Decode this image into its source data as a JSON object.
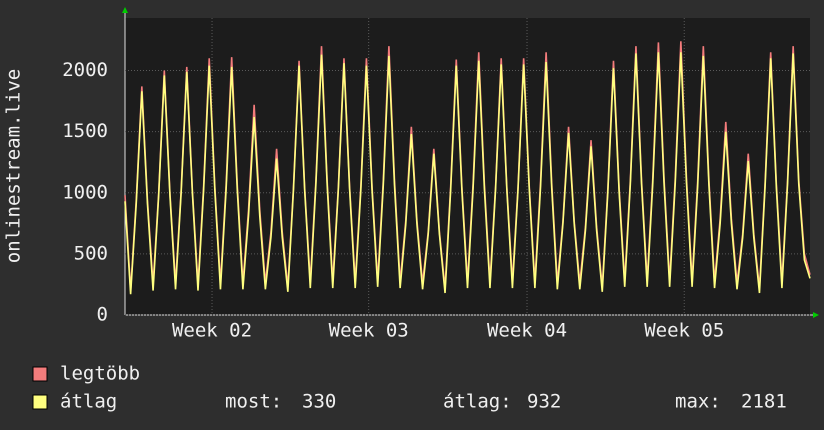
{
  "chart_data": {
    "type": "line",
    "ylabel": "onlinestream.live",
    "xlim": [
      0,
      122
    ],
    "xticks": [
      {
        "value": 15.5,
        "label": "Week 02"
      },
      {
        "value": 43.4,
        "label": "Week 03"
      },
      {
        "value": 71.6,
        "label": "Week 04"
      },
      {
        "value": 99.6,
        "label": "Week 05"
      }
    ],
    "ylim": [
      0,
      2430
    ],
    "yticks": [
      0,
      500,
      1000,
      1500,
      2000
    ],
    "grid": true,
    "series": [
      {
        "name": "legtöbb",
        "color": "#f47c7c",
        "values": [
          980,
          200,
          940,
          1870,
          940,
          250,
          1000,
          2000,
          1000,
          260,
          1020,
          2030,
          1020,
          250,
          1050,
          2100,
          1050,
          260,
          1060,
          2110,
          1060,
          260,
          860,
          1720,
          860,
          260,
          680,
          1360,
          680,
          230,
          1040,
          2080,
          1040,
          270,
          1100,
          2200,
          1100,
          270,
          1050,
          2100,
          1050,
          270,
          1050,
          2100,
          1050,
          280,
          1100,
          2200,
          1100,
          270,
          770,
          1540,
          770,
          260,
          680,
          1360,
          680,
          220,
          1050,
          2090,
          1050,
          270,
          1080,
          2150,
          1080,
          270,
          1050,
          2100,
          1050,
          270,
          1050,
          2100,
          1050,
          270,
          1080,
          2150,
          1080,
          260,
          770,
          1540,
          770,
          260,
          720,
          1430,
          720,
          230,
          1040,
          2080,
          1040,
          280,
          1100,
          2200,
          1100,
          280,
          1120,
          2230,
          1120,
          280,
          1120,
          2240,
          1120,
          280,
          1100,
          2200,
          1100,
          270,
          790,
          1580,
          790,
          260,
          660,
          1320,
          660,
          220,
          1080,
          2150,
          1080,
          270,
          1100,
          2200,
          1100,
          500,
          330
        ]
      },
      {
        "name": "átlag",
        "color": "#ffff80",
        "values": [
          930,
          170,
          910,
          1830,
          910,
          200,
          980,
          1960,
          980,
          210,
          1000,
          1990,
          1000,
          200,
          1020,
          2040,
          1020,
          210,
          1020,
          2030,
          1020,
          210,
          810,
          1620,
          810,
          210,
          640,
          1280,
          640,
          190,
          1020,
          2040,
          1020,
          220,
          1070,
          2130,
          1070,
          220,
          1030,
          2060,
          1030,
          220,
          1020,
          2040,
          1020,
          230,
          1060,
          2120,
          1060,
          220,
          740,
          1480,
          740,
          210,
          660,
          1320,
          660,
          180,
          1020,
          2040,
          1020,
          220,
          1040,
          2080,
          1040,
          220,
          1030,
          2050,
          1030,
          220,
          1030,
          2050,
          1030,
          220,
          1040,
          2070,
          1040,
          210,
          750,
          1490,
          750,
          210,
          690,
          1380,
          690,
          190,
          1010,
          2020,
          1010,
          230,
          1070,
          2140,
          1070,
          230,
          1080,
          2150,
          1080,
          230,
          1080,
          2150,
          1080,
          230,
          1060,
          2120,
          1060,
          220,
          750,
          1500,
          750,
          210,
          630,
          1260,
          630,
          180,
          1050,
          2100,
          1050,
          220,
          1070,
          2140,
          1070,
          450,
          300
        ]
      }
    ],
    "stats": [
      {
        "label": "most:",
        "value": 330
      },
      {
        "label": "átlag:",
        "value": 932
      },
      {
        "label": "max:",
        "value": 2181
      }
    ]
  }
}
